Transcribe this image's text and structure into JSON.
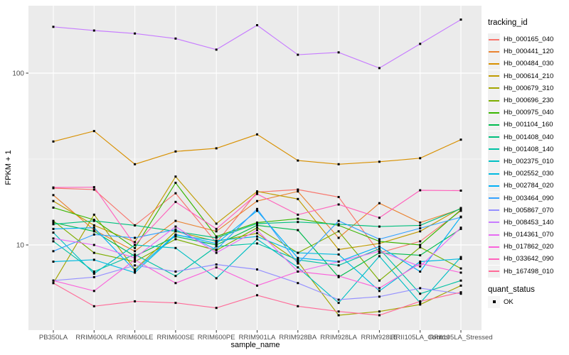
{
  "chart_data": {
    "type": "line",
    "title": "",
    "xlabel": "sample_name",
    "ylabel": "FPKM + 1",
    "y_scale": "log10",
    "y_ticks": [
      10,
      100
    ],
    "y_minor_ticks": [
      31.6
    ],
    "ylim": [
      3.2,
      247
    ],
    "grid": true,
    "legend_position": "right",
    "marker": "black-square",
    "categories": [
      "PB350LA",
      "RRIM600LA",
      "RRIM600LE",
      "RRIM600SE",
      "RRIM600PE",
      "RRIM901LA",
      "RRIM928BA",
      "RRIM928LA",
      "RRIM928LE",
      "RRII105LA_Control",
      "RRII105LA_Stressed"
    ],
    "series": [
      {
        "name": "Hb_000165_040",
        "color": "#F8766D",
        "values": [
          21.4,
          21.0,
          13.0,
          20.0,
          10.3,
          20.3,
          21.0,
          19.0,
          9.0,
          10.5,
          15.8
        ]
      },
      {
        "name": "Hb_000441_120",
        "color": "#EA8331",
        "values": [
          19.5,
          12.2,
          9.2,
          13.8,
          12.0,
          18.0,
          20.5,
          11.0,
          17.5,
          13.5,
          16.2
        ]
      },
      {
        "name": "Hb_000484_030",
        "color": "#D89000",
        "values": [
          40.0,
          46.0,
          29.5,
          35.0,
          36.5,
          44.0,
          31.0,
          29.5,
          30.5,
          32.0,
          41.0
        ]
      },
      {
        "name": "Hb_000614_210",
        "color": "#C09B00",
        "values": [
          18.0,
          13.0,
          10.4,
          25.0,
          13.3,
          20.5,
          18.5,
          9.4,
          10.2,
          12.0,
          16.4
        ]
      },
      {
        "name": "Hb_000679_310",
        "color": "#A3A500",
        "values": [
          6.0,
          15.0,
          7.2,
          12.0,
          10.5,
          11.7,
          8.0,
          3.9,
          4.1,
          4.5,
          5.8
        ]
      },
      {
        "name": "Hb_000696_230",
        "color": "#7CAE00",
        "values": [
          13.8,
          9.0,
          8.0,
          10.8,
          9.3,
          12.6,
          9.0,
          12.0,
          6.2,
          9.7,
          7.3
        ]
      },
      {
        "name": "Hb_000975_040",
        "color": "#39B600",
        "values": [
          16.5,
          14.0,
          9.6,
          23.0,
          11.2,
          13.5,
          14.2,
          13.0,
          10.5,
          10.0,
          16.0
        ]
      },
      {
        "name": "Hb_001104_160",
        "color": "#00BB4E",
        "values": [
          13.5,
          12.0,
          8.6,
          11.2,
          10.0,
          13.0,
          12.2,
          6.5,
          9.0,
          8.7,
          12.4
        ]
      },
      {
        "name": "Hb_001408_040",
        "color": "#00BF7D",
        "values": [
          13.2,
          13.8,
          13.0,
          12.0,
          11.0,
          13.3,
          13.6,
          13.2,
          12.8,
          13.0,
          16.3
        ]
      },
      {
        "name": "Hb_001408_140",
        "color": "#00C1A3",
        "values": [
          10.5,
          7.0,
          8.8,
          6.6,
          9.8,
          10.2,
          8.2,
          7.6,
          9.5,
          5.2,
          6.2
        ]
      },
      {
        "name": "Hb_002375_010",
        "color": "#00BFC4",
        "values": [
          11.8,
          6.8,
          10.0,
          9.6,
          6.4,
          10.8,
          7.4,
          4.6,
          8.6,
          4.6,
          8.5
        ]
      },
      {
        "name": "Hb_002552_030",
        "color": "#00BAE0",
        "values": [
          8.0,
          8.2,
          6.9,
          11.4,
          10.6,
          11.2,
          9.0,
          8.8,
          5.4,
          8.0,
          8.3
        ]
      },
      {
        "name": "Hb_002784_020",
        "color": "#00B0F6",
        "values": [
          12.4,
          12.6,
          7.1,
          11.5,
          10.2,
          15.8,
          8.4,
          8.0,
          9.8,
          7.0,
          14.6
        ]
      },
      {
        "name": "Hb_003464_090",
        "color": "#35A2FF",
        "values": [
          9.2,
          11.5,
          11.0,
          12.3,
          9.4,
          16.2,
          7.8,
          13.8,
          10.8,
          12.5,
          14.5
        ]
      },
      {
        "name": "Hb_005867_070",
        "color": "#9590FF",
        "values": [
          6.2,
          6.5,
          7.6,
          7.0,
          7.7,
          7.2,
          6.0,
          4.8,
          5.0,
          5.6,
          5.2
        ]
      },
      {
        "name": "Hb_008453_140",
        "color": "#C77CFF",
        "values": [
          186.0,
          177.0,
          170.0,
          159.0,
          137.0,
          190.0,
          128.0,
          132.0,
          107.0,
          148.0,
          205.0
        ]
      },
      {
        "name": "Hb_014361_070",
        "color": "#E76BF3",
        "values": [
          10.9,
          10.0,
          8.4,
          12.8,
          9.0,
          12.2,
          7.0,
          8.0,
          9.2,
          7.5,
          12.6
        ]
      },
      {
        "name": "Hb_017862_020",
        "color": "#FA62DB",
        "values": [
          6.2,
          5.4,
          8.2,
          6.0,
          7.4,
          5.8,
          7.0,
          6.6,
          5.6,
          7.8,
          6.9
        ]
      },
      {
        "name": "Hb_033642_090",
        "color": "#FF62BC",
        "values": [
          21.6,
          21.7,
          10.0,
          17.8,
          12.4,
          19.8,
          15.0,
          17.2,
          14.4,
          20.8,
          20.7
        ]
      },
      {
        "name": "Hb_167498_010",
        "color": "#FF6A98",
        "values": [
          6.0,
          4.4,
          4.7,
          4.6,
          4.3,
          5.1,
          4.4,
          4.1,
          3.9,
          4.7,
          5.3
        ]
      }
    ],
    "legend": {
      "title": "tracking_id",
      "quant_title": "quant_status",
      "quant_items": [
        "OK"
      ]
    }
  },
  "style": {
    "panel_bg": "#EBEBEB",
    "grid_color": "#FFFFFF",
    "tick_text": "#4D4D4D",
    "axis_tick": "#333333",
    "point_color": "#000000",
    "legend_key_bg": "#F0F0F0"
  }
}
